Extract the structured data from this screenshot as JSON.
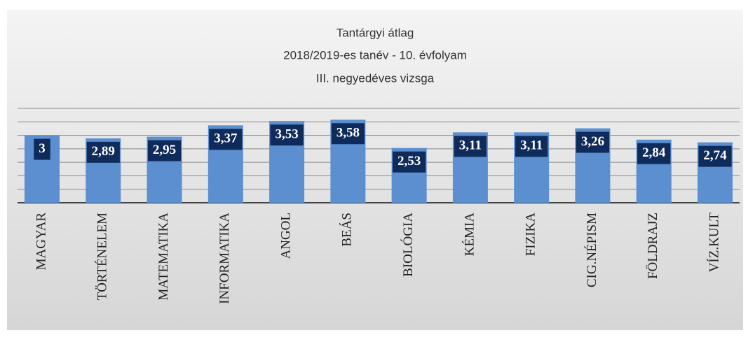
{
  "chart_data": {
    "type": "bar",
    "title": "Tantárgyi átlag",
    "subtitle": [
      "2018/2019-es tanév - 10. évfolyam",
      "III. negyedéves vizsga"
    ],
    "categories": [
      "MAGYAR",
      "TÖRTÉNELEM",
      "MATEMATIKA",
      "INFORMATIKA",
      "ANGOL",
      "BEÁS",
      "BIOLÓGIA",
      "KÉMIA",
      "FIZIKA",
      "CIG.NÉPISM",
      "FÖLDRAJZ",
      "VÍZ.KULT"
    ],
    "values": [
      3,
      2.89,
      2.95,
      3.37,
      3.53,
      3.58,
      2.53,
      3.11,
      3.11,
      3.26,
      2.84,
      2.74
    ],
    "value_labels": [
      "3",
      "2,89",
      "2,95",
      "3,37",
      "3,53",
      "3,58",
      "2,53",
      "3,11",
      "3,11",
      "3,26",
      "2,84",
      "2,74"
    ],
    "color": "#5b8fd0",
    "ylim": [
      0.5,
      4
    ],
    "yticks": [
      0.5,
      1,
      1.5,
      2,
      2.5,
      3,
      3.5,
      4
    ],
    "grid": true
  }
}
